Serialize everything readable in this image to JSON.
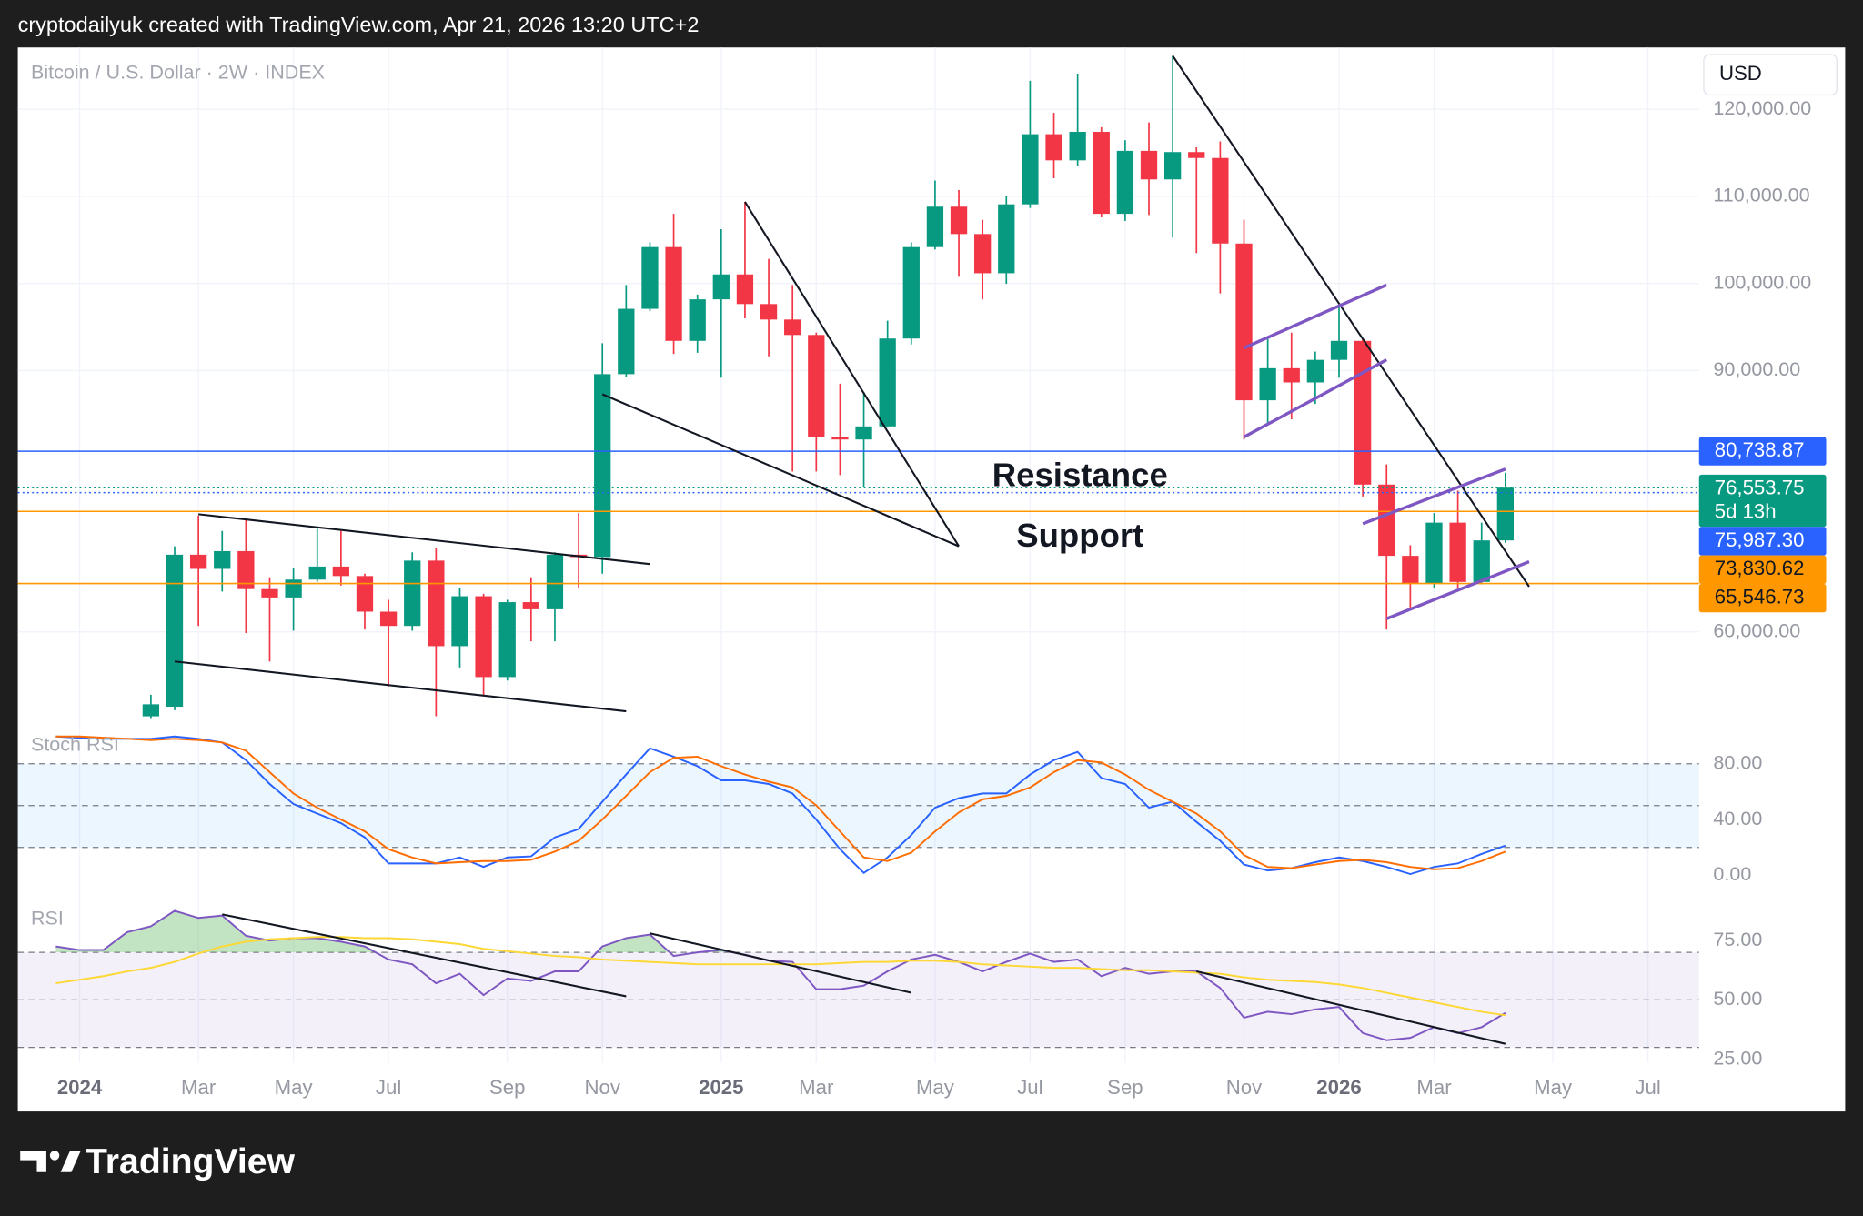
{
  "header": "cryptodailyuk created with TradingView.com, Apr 21, 2026 13:20 UTC+2",
  "currency": "USD",
  "brand": "TradingView",
  "chart_data": [
    {
      "type": "candlestick",
      "title": "Bitcoin / U.S. Dollar · 2W · INDEX",
      "categories": [
        null,
        "2024",
        null,
        null,
        null,
        null,
        "Mar",
        null,
        null,
        null,
        "May",
        null,
        null,
        null,
        "Jul",
        null,
        null,
        null,
        null,
        "Sep",
        null,
        null,
        null,
        "Nov",
        null,
        null,
        null,
        null,
        "2025",
        null,
        null,
        null,
        "Mar",
        null,
        null,
        null,
        null,
        "May",
        null,
        null,
        null,
        "Jul",
        null,
        null,
        null,
        "Sep",
        null,
        null,
        null,
        null,
        "Nov",
        null,
        null,
        null,
        "2026",
        null,
        null,
        null,
        "Mar",
        null,
        null,
        null,
        null,
        "May",
        null,
        null,
        null,
        "Jul",
        null
      ],
      "open": [
        null,
        null,
        null,
        null,
        50300,
        51400,
        68860,
        67230,
        69270,
        64910,
        63950,
        66000,
        67500,
        66410,
        62320,
        60680,
        68180,
        58360,
        64090,
        54810,
        63410,
        62590,
        68860,
        68590,
        89590,
        97090,
        104180,
        93410,
        98180,
        101040,
        97640,
        95860,
        94090,
        82360,
        82090,
        83590,
        93680,
        104180,
        108820,
        105680,
        101180,
        109090,
        117140,
        114140,
        117410,
        108000,
        115230,
        111950,
        115090,
        114410,
        104590,
        86590,
        90270,
        88640,
        91230,
        93410,
        76910,
        68730,
        65590,
        72540,
        65730,
        70500,
        null,
        null,
        null,
        null,
        null,
        null,
        null
      ],
      "high": [
        null,
        null,
        null,
        null,
        52770,
        69820,
        73360,
        71590,
        72820,
        66270,
        67360,
        71860,
        71590,
        66680,
        63680,
        69130,
        69680,
        65040,
        64360,
        63680,
        66270,
        69130,
        73640,
        93140,
        99820,
        104730,
        108000,
        98730,
        106230,
        109360,
        102820,
        99820,
        94360,
        88500,
        87540,
        95730,
        104730,
        111820,
        110730,
        107320,
        110050,
        123270,
        119590,
        124090,
        117950,
        116450,
        118500,
        126140,
        115640,
        116320,
        107320,
        93680,
        94360,
        92180,
        97360,
        93680,
        79230,
        69950,
        73640,
        76220,
        72540,
        78270,
        null,
        null,
        null,
        null,
        null,
        null,
        null
      ],
      "low": [
        null,
        null,
        null,
        null,
        50100,
        51000,
        60680,
        64630,
        59860,
        56590,
        60130,
        65730,
        65320,
        60270,
        53720,
        60130,
        50310,
        55910,
        52630,
        54410,
        58910,
        58910,
        65040,
        66680,
        89320,
        96820,
        91910,
        92050,
        89180,
        96000,
        91640,
        78410,
        78410,
        78000,
        76630,
        83450,
        93000,
        103910,
        100770,
        98180,
        99950,
        108680,
        112090,
        113450,
        107590,
        107180,
        107860,
        105270,
        103500,
        98860,
        82090,
        83860,
        84410,
        86180,
        89180,
        75540,
        60270,
        62590,
        65040,
        65040,
        65450,
        70230,
        null,
        null,
        null,
        null,
        null,
        null,
        null
      ],
      "close": [
        null,
        null,
        null,
        null,
        51680,
        68860,
        67230,
        69270,
        64910,
        63950,
        66000,
        67500,
        66410,
        62320,
        60680,
        68180,
        58360,
        64090,
        54810,
        63410,
        62590,
        68860,
        68590,
        89590,
        97090,
        104180,
        93410,
        98180,
        101040,
        97640,
        95860,
        94090,
        82360,
        82090,
        83590,
        93680,
        104180,
        108820,
        105680,
        101180,
        109090,
        117140,
        114140,
        117410,
        108000,
        115230,
        111950,
        115090,
        114410,
        104590,
        86590,
        90270,
        88640,
        91230,
        93410,
        76910,
        68730,
        65590,
        72540,
        65730,
        70500,
        76553.75,
        null,
        null,
        null,
        null,
        null,
        null,
        null
      ],
      "up_color": "#089981",
      "down_color": "#f23645",
      "ylim": [
        49100,
        127100
      ],
      "yticks": [
        {
          "value": 60000,
          "label": "60,000.00"
        },
        {
          "value": 90000,
          "label": "90,000.00"
        },
        {
          "value": 100000,
          "label": "100,000.00"
        },
        {
          "value": 110000,
          "label": "110,000.00"
        },
        {
          "value": 120000,
          "label": "120,000.00"
        }
      ],
      "grid": true,
      "annotations": [
        "Resistance",
        "Support"
      ],
      "price_lines": [
        {
          "value": 80738.87,
          "label": "80,738.87",
          "color": "#2962ff",
          "text_color": "#ffffff",
          "style": "solid"
        },
        {
          "value": 76553.75,
          "label": "76,553.75",
          "countdown": "5d 13h",
          "color": "#089981",
          "text_color": "#ffffff",
          "style": "dotted"
        },
        {
          "value": 75987.3,
          "label": "75,987.30",
          "color": "#2962ff",
          "text_color": "#ffffff",
          "style": "dotted"
        },
        {
          "value": 73830.62,
          "label": "73,830.62",
          "color": "#ff9800",
          "text_color": "#131722",
          "style": "solid"
        },
        {
          "value": 65546.73,
          "label": "65,546.73",
          "color": "#ff9800",
          "text_color": "#131722",
          "style": "solid"
        }
      ]
    },
    {
      "type": "line",
      "title": "Stoch RSI",
      "series": [
        {
          "color": "#2962ff",
          "values": [
            99.6,
            98.7,
            97.9,
            97.9,
            97.9,
            99.6,
            97.9,
            95.3,
            82.6,
            65.5,
            51.1,
            44.3,
            37.4,
            27.2,
            8.5,
            8.5,
            8.5,
            12.8,
            6.0,
            12.8,
            13.6,
            27.2,
            33.2,
            52.8,
            72.3,
            91.1,
            85.1,
            78.3,
            68.1,
            68.1,
            65.5,
            58.7,
            40.0,
            18.7,
            1.7,
            12.8,
            28.9,
            48.5,
            55.3,
            58.7,
            58.7,
            72.3,
            82.6,
            88.5,
            69.8,
            65.5,
            48.5,
            52.8,
            38.3,
            24.7,
            7.7,
            3.4,
            5.1,
            9.4,
            12.8,
            10.2,
            6.0,
            0.9,
            6.0,
            8.5,
            15.3,
            21.3,
            null,
            null,
            null,
            null,
            null,
            null,
            null
          ]
        },
        {
          "color": "#ff6d00",
          "values": [
            99.6,
            99.6,
            98.7,
            97.9,
            97.0,
            97.9,
            97.0,
            95.3,
            89.4,
            74.0,
            58.7,
            48.5,
            40.0,
            31.5,
            18.7,
            12.8,
            8.5,
            9.4,
            10.2,
            10.2,
            11.1,
            17.0,
            24.7,
            40.0,
            57.0,
            74.0,
            84.3,
            85.1,
            78.3,
            72.3,
            67.2,
            63.0,
            50.2,
            31.5,
            12.8,
            10.2,
            16.2,
            31.5,
            45.1,
            54.5,
            57.0,
            63.0,
            74.0,
            82.6,
            80.9,
            72.3,
            61.3,
            52.8,
            44.3,
            31.5,
            14.5,
            6.0,
            5.1,
            7.7,
            10.2,
            11.1,
            9.4,
            6.0,
            4.3,
            5.1,
            10.2,
            17.0,
            null,
            null,
            null,
            null,
            null,
            null,
            null
          ]
        }
      ],
      "ylim": [
        -11,
        104
      ],
      "yticks": [
        {
          "value": 0,
          "label": "0.00"
        },
        {
          "value": 40,
          "label": "40.00"
        },
        {
          "value": 80,
          "label": "80.00"
        }
      ],
      "levels": [
        20,
        50,
        80
      ],
      "band": [
        20,
        80
      ],
      "band_color": "#2196f3"
    },
    {
      "type": "line",
      "title": "RSI",
      "series": [
        {
          "color": "#7e57c2",
          "values": [
            72.5,
            71,
            71,
            78.5,
            81,
            87.5,
            84.5,
            85.5,
            77,
            75,
            76,
            76,
            74.5,
            72.5,
            67,
            65,
            57,
            61,
            52,
            59,
            58,
            62,
            62,
            72.5,
            76,
            77.5,
            68.5,
            70,
            71,
            69,
            66.5,
            66,
            54.5,
            54.5,
            56,
            62,
            67,
            69,
            66,
            62,
            66,
            69.5,
            66,
            67,
            60,
            63.5,
            61,
            62,
            62,
            55,
            42.5,
            45,
            44,
            46,
            47,
            36,
            33,
            34,
            38.5,
            36,
            38.5,
            44.5,
            null,
            null,
            null,
            null,
            null,
            null,
            null
          ]
        },
        {
          "color": "#fdd835",
          "values": [
            57,
            58.5,
            60,
            62,
            63.5,
            66,
            69.5,
            72.5,
            74.5,
            75.5,
            76,
            76.5,
            76.5,
            76,
            76,
            75.5,
            74.5,
            73.5,
            71.5,
            70.5,
            69.5,
            68.5,
            68,
            67,
            66.5,
            66,
            65.5,
            65,
            65,
            65,
            65,
            65,
            65,
            65.5,
            66,
            66,
            66.5,
            66.5,
            66,
            65,
            64.5,
            64,
            63.5,
            63.5,
            63,
            62.5,
            62.5,
            62,
            61.5,
            61,
            59.5,
            58.5,
            58,
            57.5,
            56.5,
            55,
            53,
            51,
            49,
            47,
            45,
            43.5,
            null,
            null,
            null,
            null,
            null,
            null,
            null
          ]
        }
      ],
      "ylim": [
        23.5,
        96
      ],
      "yticks": [
        {
          "value": 25,
          "label": "25.00"
        },
        {
          "value": 50,
          "label": "50.00"
        },
        {
          "value": 75,
          "label": "75.00"
        }
      ],
      "levels": [
        30,
        50,
        70
      ],
      "band": [
        30,
        70
      ],
      "band_color": "#7e57c2",
      "highlight_color": "#66bb6a"
    }
  ]
}
